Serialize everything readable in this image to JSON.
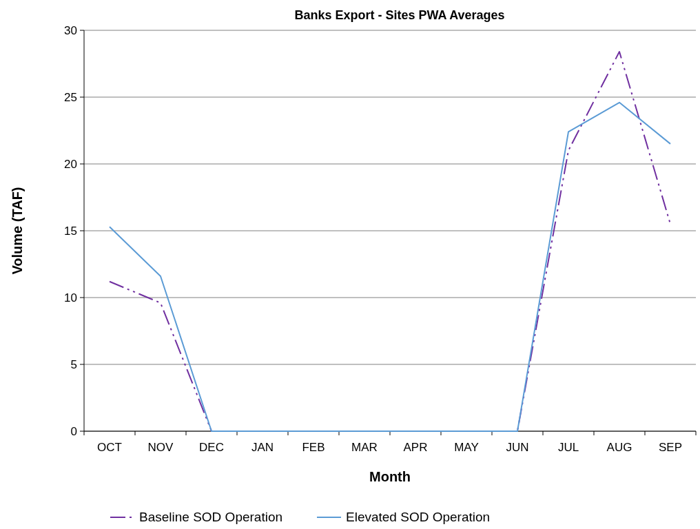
{
  "chart_data": {
    "type": "line",
    "title": "Banks Export - Sites PWA Averages",
    "xlabel": "Month",
    "ylabel": "Volume (TAF)",
    "categories": [
      "OCT",
      "NOV",
      "DEC",
      "JAN",
      "FEB",
      "MAR",
      "APR",
      "MAY",
      "JUN",
      "JUL",
      "AUG",
      "SEP"
    ],
    "series": [
      {
        "name": "Baseline SOD Operation",
        "color": "#7030a0",
        "line_style": "dashed",
        "values": [
          11.2,
          9.6,
          0,
          0,
          0,
          0,
          0,
          0,
          0,
          21,
          28.4,
          15.5
        ]
      },
      {
        "name": "Elevated SOD Operation",
        "color": "#5b9bd5",
        "line_style": "solid",
        "values": [
          15.3,
          11.6,
          0,
          0,
          0,
          0,
          0,
          0,
          0,
          22.4,
          24.6,
          21.5
        ]
      }
    ],
    "ylim": [
      0,
      30
    ],
    "yticks": [
      0,
      5,
      10,
      15,
      20,
      25,
      30
    ],
    "grid": "y",
    "legend": "bottom",
    "marker": "none"
  }
}
